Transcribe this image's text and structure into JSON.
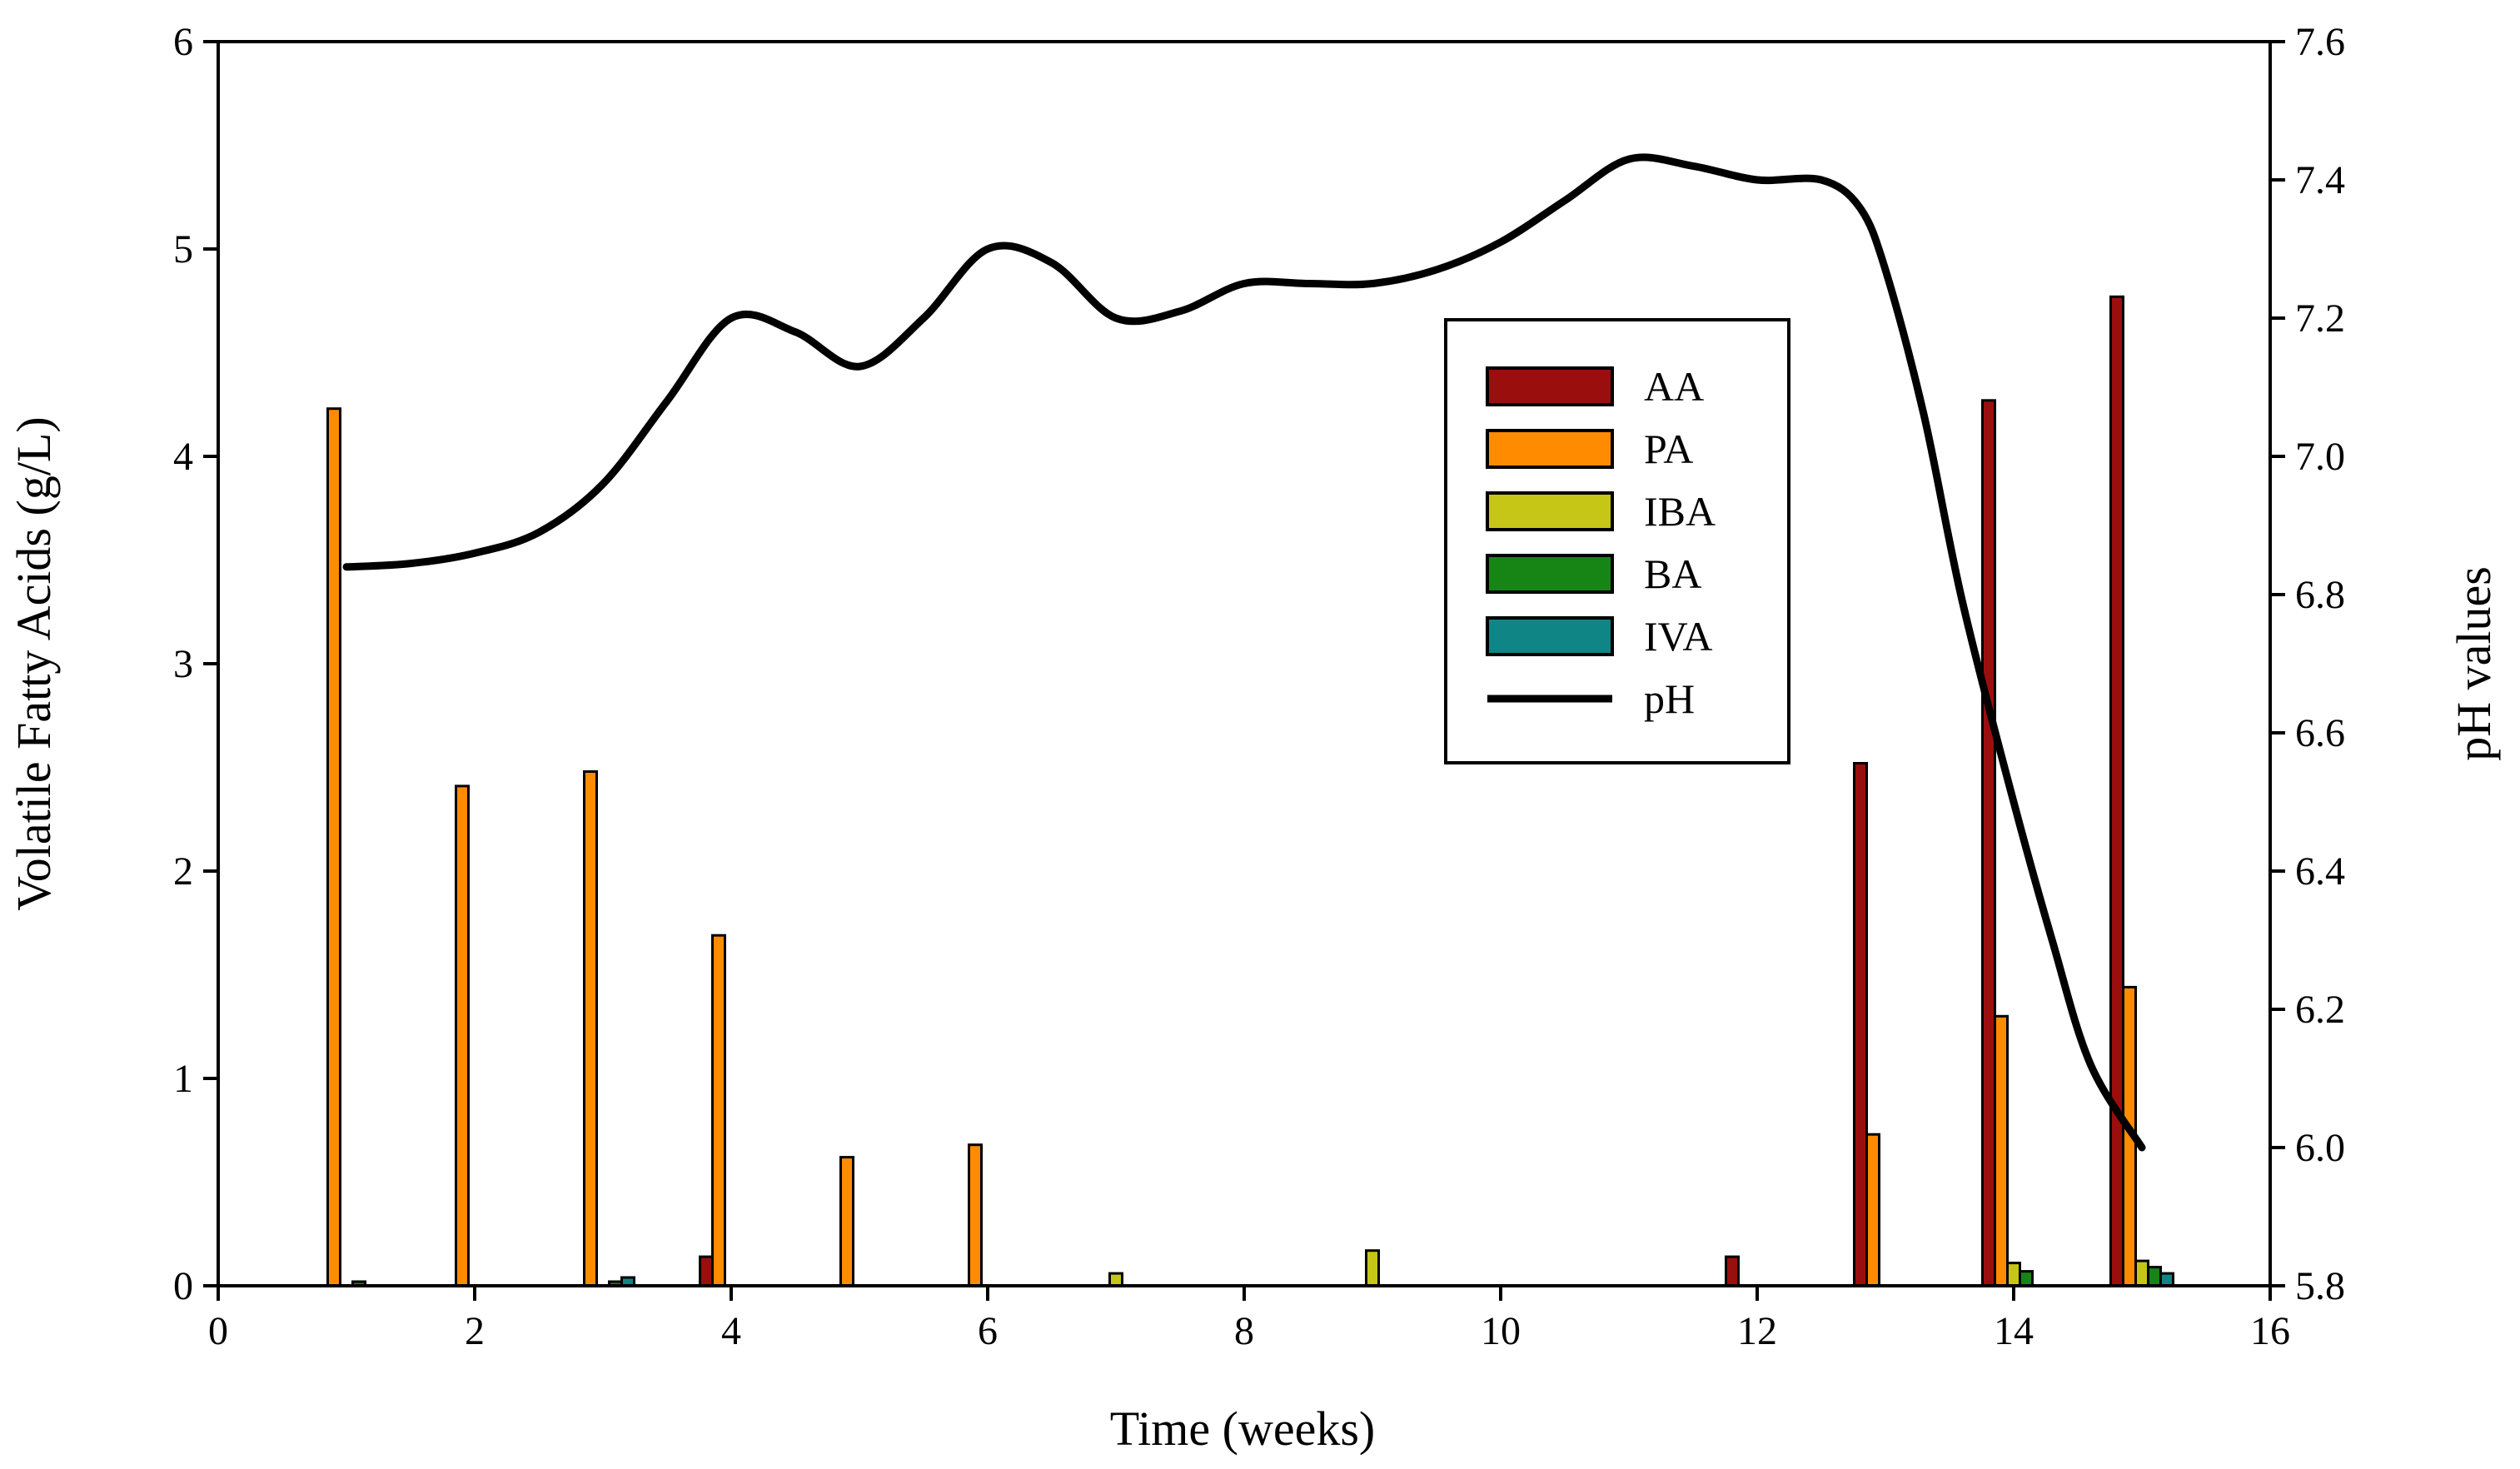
{
  "chart_data": {
    "type": "bar+line",
    "xlabel": "Time (weeks)",
    "ylabel_left": "Volatile Fatty Acids (g/L)",
    "ylabel_right": "pH  values",
    "xlim": [
      0,
      16
    ],
    "ylim_left": [
      0,
      6
    ],
    "ylim_right": [
      5.8,
      7.6
    ],
    "x_ticks": [
      "0",
      "2",
      "4",
      "6",
      "8",
      "10",
      "12",
      "14",
      "16"
    ],
    "y_left_ticks": [
      "0",
      "1",
      "2",
      "3",
      "4",
      "5",
      "6"
    ],
    "y_right_ticks": [
      "5.8",
      "6.0",
      "6.2",
      "6.4",
      "6.6",
      "6.8",
      "7.0",
      "7.2",
      "7.4",
      "7.6"
    ],
    "legend_position": "upper-right",
    "weeks": [
      1,
      2,
      3,
      4,
      5,
      6,
      7,
      8,
      9,
      10,
      11,
      12,
      13,
      14,
      15
    ],
    "series": [
      {
        "name": "AA",
        "color": "#9B0E0E",
        "values": [
          0,
          0,
          0,
          0.14,
          0,
          0,
          0,
          0,
          0,
          0,
          0,
          0.14,
          2.52,
          4.27,
          4.77
        ]
      },
      {
        "name": "PA",
        "color": "#FF8C00",
        "values": [
          4.23,
          2.41,
          2.48,
          1.69,
          0.62,
          0.68,
          0,
          0,
          0,
          0,
          0,
          0,
          0.73,
          1.3,
          1.44
        ]
      },
      {
        "name": "IBA",
        "color": "#C6C617",
        "values": [
          0,
          0,
          0,
          0,
          0,
          0,
          0.06,
          0,
          0.17,
          0,
          0,
          0,
          0,
          0.11,
          0.12
        ]
      },
      {
        "name": "BA",
        "color": "#168516",
        "values": [
          0.02,
          0,
          0.02,
          0,
          0,
          0,
          0,
          0,
          0,
          0,
          0,
          0,
          0,
          0.07,
          0.09
        ]
      },
      {
        "name": "IVA",
        "color": "#108585",
        "values": [
          0,
          0,
          0.04,
          0,
          0,
          0,
          0,
          0,
          0,
          0,
          0,
          0,
          0,
          0,
          0.06
        ]
      }
    ],
    "ph": {
      "name": "pH",
      "color": "#000000",
      "x": [
        1,
        1.5,
        2,
        2.5,
        3,
        3.5,
        4,
        4.5,
        5,
        5.5,
        6,
        6.5,
        7,
        7.5,
        8,
        8.5,
        9,
        9.5,
        10,
        10.5,
        11,
        11.5,
        12,
        12.5,
        12.8,
        13,
        13.3,
        13.6,
        14,
        14.3,
        14.6,
        15
      ],
      "values": [
        6.84,
        6.845,
        6.86,
        6.89,
        6.96,
        7.08,
        7.2,
        7.18,
        7.13,
        7.2,
        7.3,
        7.28,
        7.2,
        7.21,
        7.25,
        7.25,
        7.25,
        7.27,
        7.31,
        7.37,
        7.43,
        7.42,
        7.4,
        7.4,
        7.36,
        7.27,
        7.06,
        6.79,
        6.5,
        6.3,
        6.12,
        6.0
      ]
    }
  }
}
